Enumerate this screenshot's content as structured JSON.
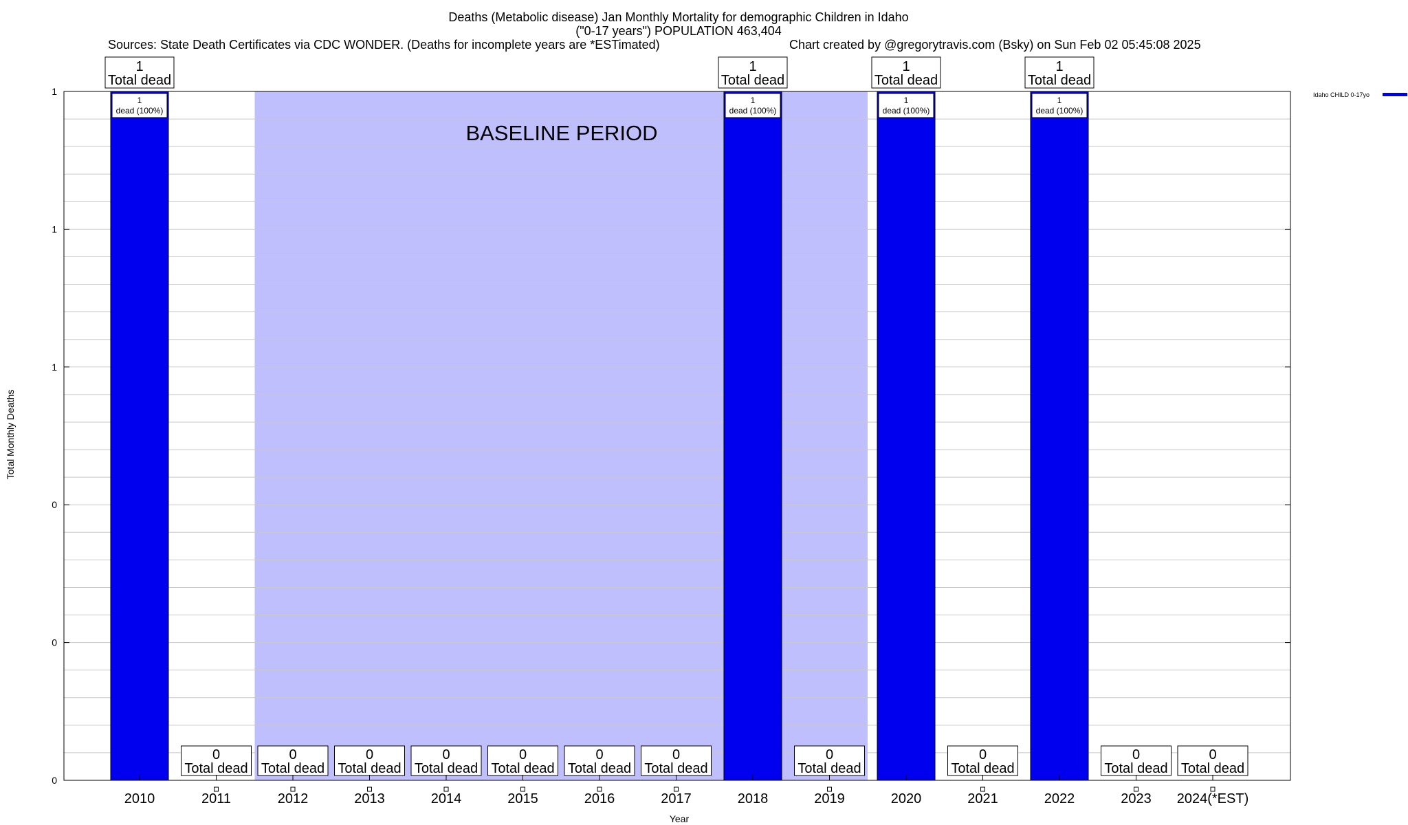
{
  "title_lines": [
    "Deaths (Metabolic disease) Jan Monthly Mortality for demographic Children in Idaho",
    "(\"0-17 years\") POPULATION 463,404"
  ],
  "sources": "Sources: State Death Certificates via CDC WONDER. (Deaths for incomplete years are *ESTimated)",
  "credit": "Chart created by @gregorytravis.com (Bsky) on Sun Feb 02 05:45:08 2025",
  "baseline_label": "BASELINE PERIOD",
  "colors": {
    "bar": "#0000ee",
    "baseline_shade": "#bfbffd",
    "grid": "#c8c8c8"
  },
  "chart_data": {
    "type": "bar",
    "xlabel": "Year",
    "ylabel": "Total Monthly Deaths",
    "ylim": [
      0,
      1
    ],
    "y_tick_labels": [
      "0",
      "0",
      "0",
      "1",
      "1",
      "1"
    ],
    "grid": true,
    "legend_position": "top-right",
    "categories": [
      "2010",
      "2011",
      "2012",
      "2013",
      "2014",
      "2015",
      "2016",
      "2017",
      "2018",
      "2019",
      "2020",
      "2021",
      "2022",
      "2023",
      "2024(*EST)"
    ],
    "series": [
      {
        "name": "Idaho CHILD 0-17yo",
        "values": [
          1,
          0,
          0,
          0,
          0,
          0,
          0,
          0,
          1,
          0,
          1,
          0,
          1,
          0,
          0
        ]
      }
    ],
    "total_label_suffix": "Total dead",
    "inner_label_suffix": "dead (100%)",
    "baseline_range": [
      "2012",
      "2019"
    ]
  }
}
